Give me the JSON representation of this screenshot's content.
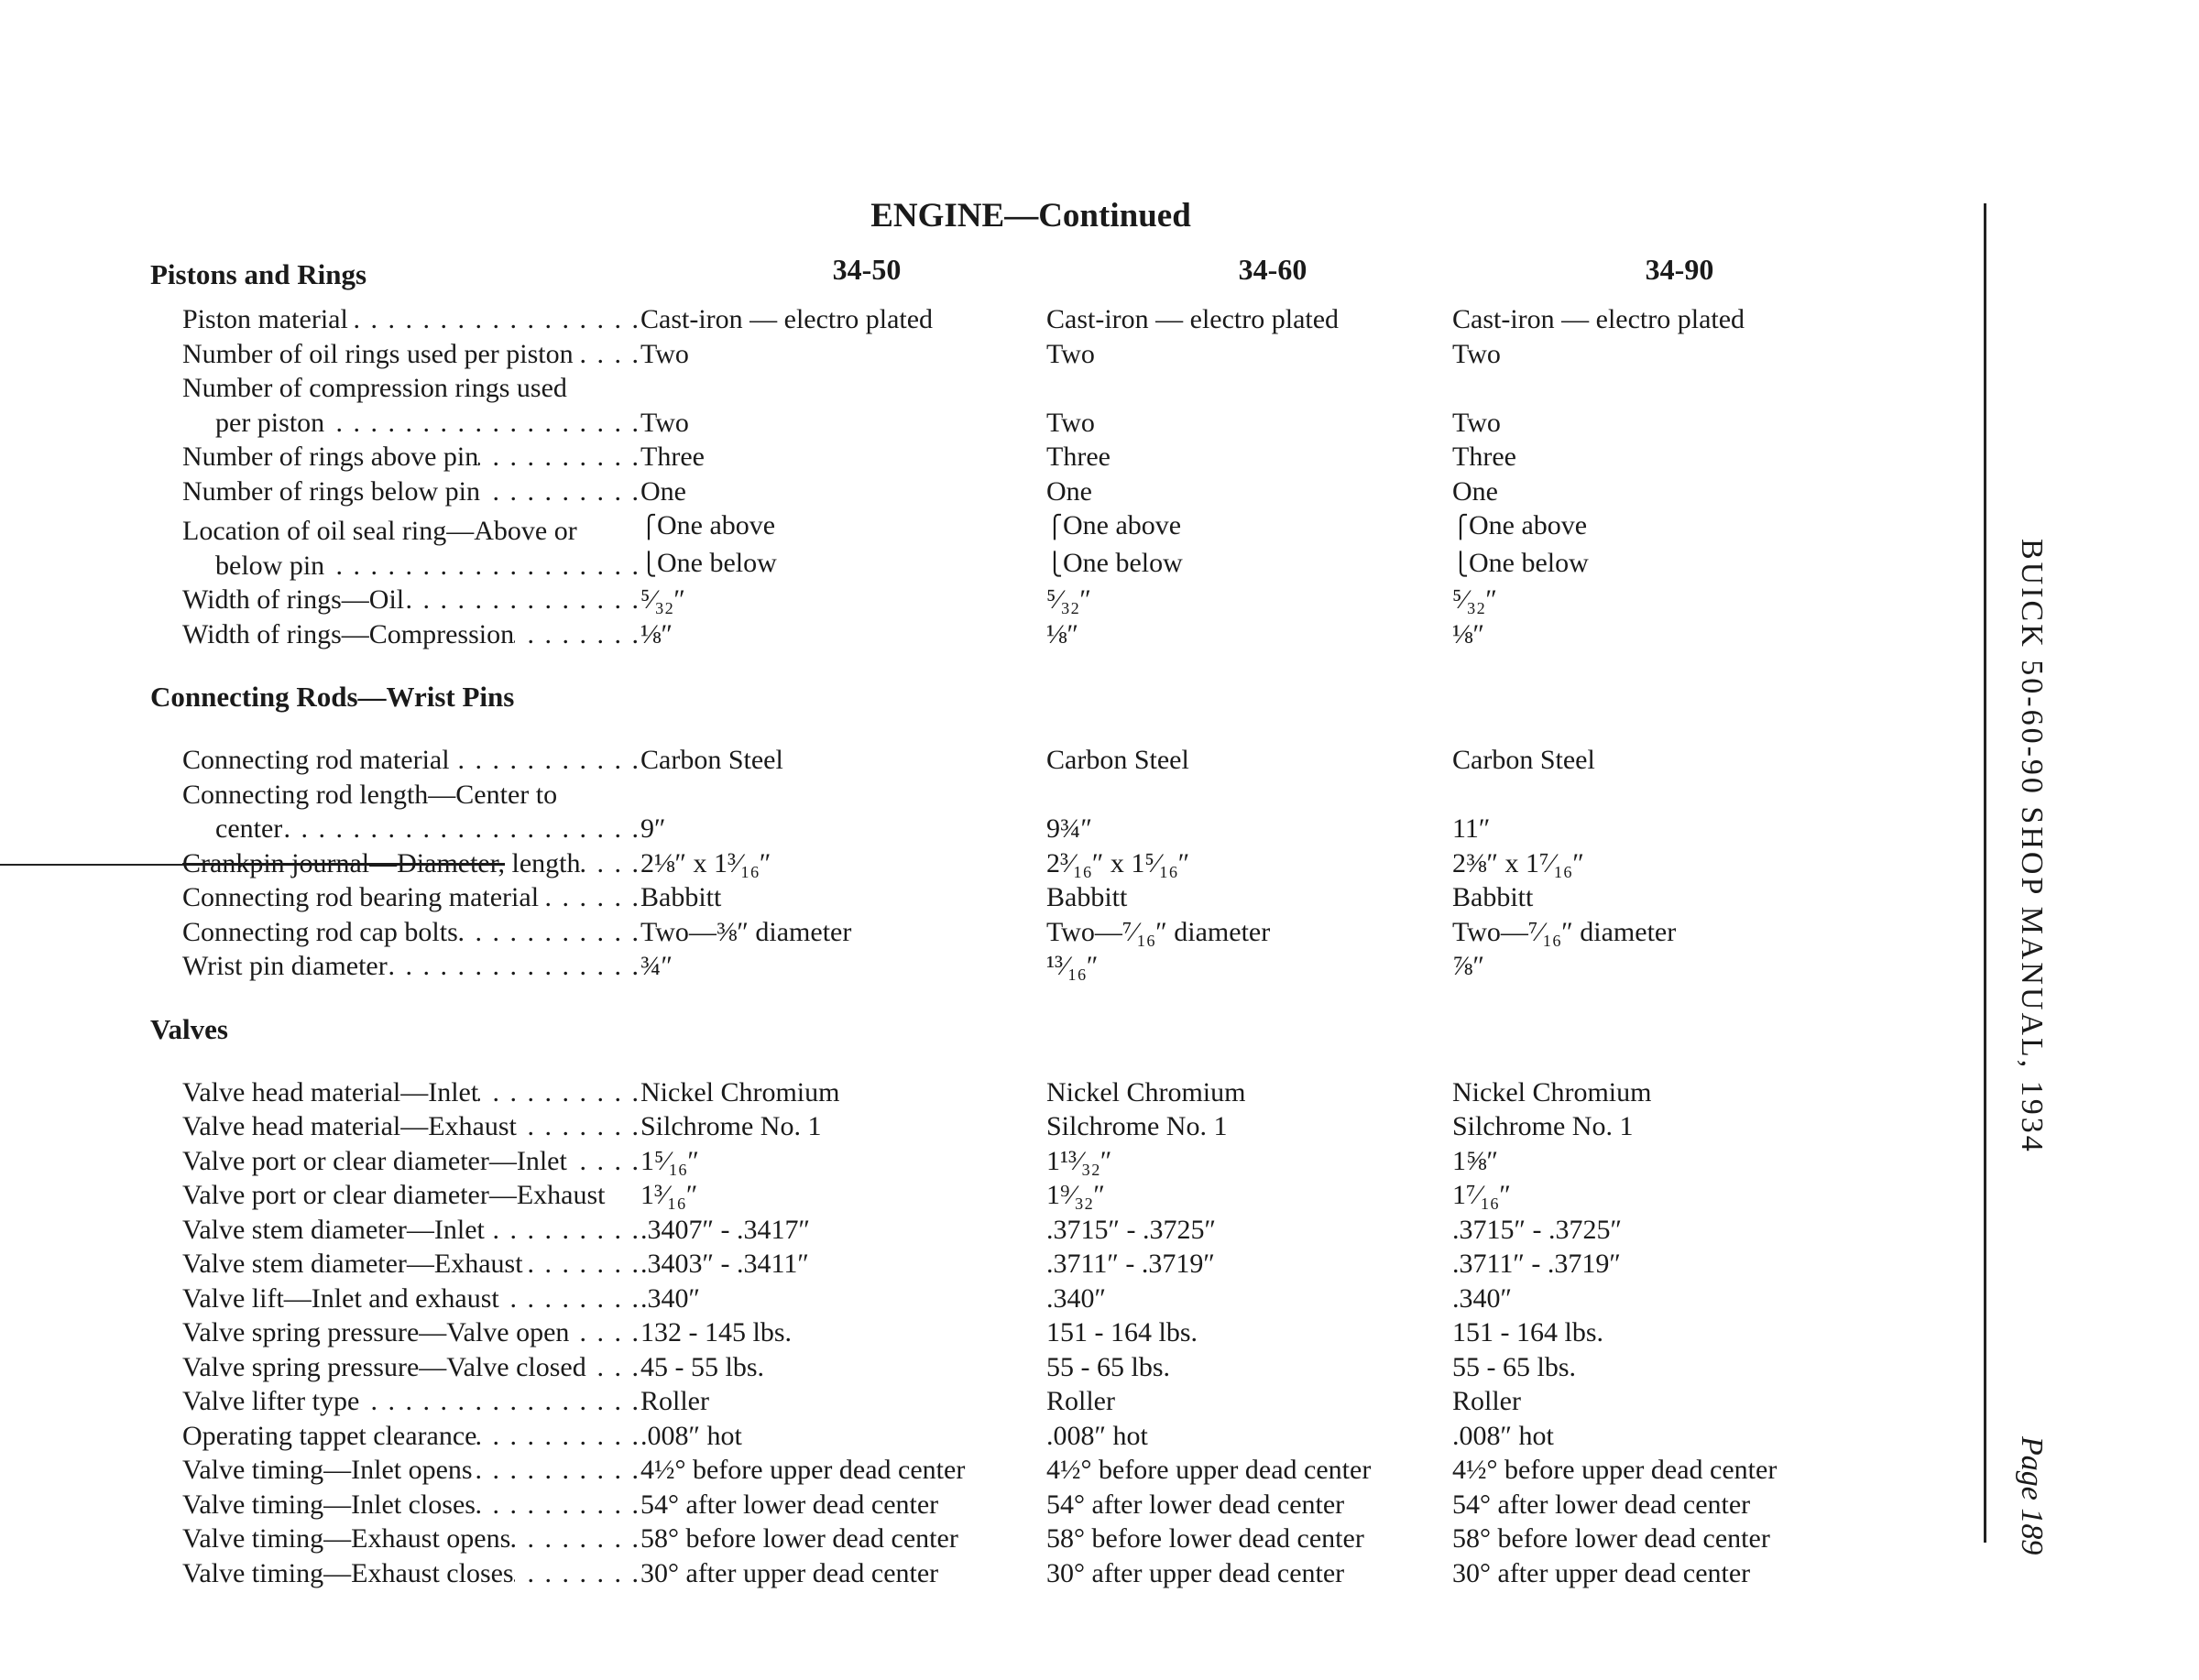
{
  "title": "ENGINE—Continued",
  "columns": [
    "34-50",
    "34-60",
    "34-90"
  ],
  "side_text": "BUICK 50-60-90 SHOP MANUAL, 1934",
  "page_label": "Page 189",
  "sections": [
    {
      "heading": "Pistons and Rings",
      "rows": [
        {
          "label": [
            "Piston material"
          ],
          "values": [
            [
              "Cast-iron — electro plated"
            ],
            [
              "Cast-iron — electro plated"
            ],
            [
              "Cast-iron — electro plated"
            ]
          ]
        },
        {
          "label": [
            "Number of oil rings used per piston"
          ],
          "values": [
            [
              "Two"
            ],
            [
              "Two"
            ],
            [
              "Two"
            ]
          ]
        },
        {
          "label": [
            "Number of compression rings used",
            "per piston"
          ],
          "values": [
            [
              "Two"
            ],
            [
              "Two"
            ],
            [
              "Two"
            ]
          ]
        },
        {
          "label": [
            "Number of rings above pin"
          ],
          "values": [
            [
              "Three"
            ],
            [
              "Three"
            ],
            [
              "Three"
            ]
          ]
        },
        {
          "label": [
            "Number of rings below pin"
          ],
          "values": [
            [
              "One"
            ],
            [
              "One"
            ],
            [
              "One"
            ]
          ]
        },
        {
          "label": [
            "Location of oil seal ring—Above or",
            "below pin"
          ],
          "brace": true,
          "values": [
            [
              "One above",
              "One below"
            ],
            [
              "One above",
              "One below"
            ],
            [
              "One above",
              "One below"
            ]
          ]
        },
        {
          "label": [
            "Width of rings—Oil"
          ],
          "values": [
            [
              "⁵⁄₃₂″"
            ],
            [
              "⁵⁄₃₂″"
            ],
            [
              "⁵⁄₃₂″"
            ]
          ]
        },
        {
          "label": [
            "Width of rings—Compression"
          ],
          "values": [
            [
              "⅛″"
            ],
            [
              "⅛″"
            ],
            [
              "⅛″"
            ]
          ]
        }
      ]
    },
    {
      "heading": "Connecting Rods—Wrist Pins",
      "rows": [
        {
          "label": [
            "Connecting rod material"
          ],
          "values": [
            [
              "Carbon Steel"
            ],
            [
              "Carbon Steel"
            ],
            [
              "Carbon Steel"
            ]
          ]
        },
        {
          "label": [
            "Connecting rod length—Center to",
            "center"
          ],
          "values": [
            [
              "9″"
            ],
            [
              "9¾″"
            ],
            [
              "11″"
            ]
          ]
        },
        {
          "label": [
            "length"
          ],
          "struck": "Crankpin journal—Diameter,",
          "values": [
            [
              "2⅛″ x 1³⁄₁₆″"
            ],
            [
              "2³⁄₁₆″ x 1⁵⁄₁₆″"
            ],
            [
              "2⅜″ x 1⁷⁄₁₆″"
            ]
          ]
        },
        {
          "label": [
            "Connecting rod bearing material"
          ],
          "values": [
            [
              "Babbitt"
            ],
            [
              "Babbitt"
            ],
            [
              "Babbitt"
            ]
          ]
        },
        {
          "label": [
            "Connecting rod cap bolts"
          ],
          "values": [
            [
              "Two—⅜″ diameter"
            ],
            [
              "Two—⁷⁄₁₆″ diameter"
            ],
            [
              "Two—⁷⁄₁₆″ diameter"
            ]
          ]
        },
        {
          "label": [
            "Wrist pin diameter"
          ],
          "values": [
            [
              "¾″"
            ],
            [
              "¹³⁄₁₆″"
            ],
            [
              "⅞″"
            ]
          ]
        }
      ]
    },
    {
      "heading": "Valves",
      "rows": [
        {
          "label": [
            "Valve head material—Inlet"
          ],
          "values": [
            [
              "Nickel Chromium"
            ],
            [
              "Nickel Chromium"
            ],
            [
              "Nickel Chromium"
            ]
          ]
        },
        {
          "label": [
            "Valve head material—Exhaust"
          ],
          "values": [
            [
              "Silchrome No. 1"
            ],
            [
              "Silchrome No. 1"
            ],
            [
              "Silchrome No. 1"
            ]
          ]
        },
        {
          "label": [
            "Valve port or clear diameter—Inlet"
          ],
          "values": [
            [
              "1⁵⁄₁₆″"
            ],
            [
              "1¹³⁄₃₂″"
            ],
            [
              "1⅝″"
            ]
          ]
        },
        {
          "label": [
            "Valve port or clear diameter—Exhaust"
          ],
          "nodots": true,
          "values": [
            [
              "1³⁄₁₆″"
            ],
            [
              "1⁹⁄₃₂″"
            ],
            [
              "1⁷⁄₁₆″"
            ]
          ]
        },
        {
          "label": [
            "Valve stem diameter—Inlet"
          ],
          "values": [
            [
              ".3407″ - .3417″"
            ],
            [
              ".3715″ - .3725″"
            ],
            [
              ".3715″ - .3725″"
            ]
          ]
        },
        {
          "label": [
            "Valve stem diameter—Exhaust"
          ],
          "values": [
            [
              ".3403″ - .3411″"
            ],
            [
              ".3711″ - .3719″"
            ],
            [
              ".3711″ - .3719″"
            ]
          ]
        },
        {
          "label": [
            "Valve lift—Inlet and exhaust"
          ],
          "values": [
            [
              ".340″"
            ],
            [
              ".340″"
            ],
            [
              ".340″"
            ]
          ]
        },
        {
          "label": [
            "Valve spring pressure—Valve open"
          ],
          "values": [
            [
              "132 - 145 lbs."
            ],
            [
              "151 - 164 lbs."
            ],
            [
              "151 - 164 lbs."
            ]
          ]
        },
        {
          "label": [
            "Valve spring pressure—Valve closed"
          ],
          "values": [
            [
              "45 - 55 lbs."
            ],
            [
              "55 - 65 lbs."
            ],
            [
              "55 - 65 lbs."
            ]
          ]
        },
        {
          "label": [
            "Valve lifter type"
          ],
          "values": [
            [
              "Roller"
            ],
            [
              "Roller"
            ],
            [
              "Roller"
            ]
          ]
        },
        {
          "label": [
            "Operating tappet clearance"
          ],
          "values": [
            [
              ".008″ hot"
            ],
            [
              ".008″ hot"
            ],
            [
              ".008″ hot"
            ]
          ]
        },
        {
          "label": [
            "Valve timing—Inlet opens"
          ],
          "values": [
            [
              "4½° before upper dead center"
            ],
            [
              "4½° before upper dead center"
            ],
            [
              "4½° before upper dead center"
            ]
          ]
        },
        {
          "label": [
            "Valve timing—Inlet closes"
          ],
          "values": [
            [
              "54° after lower dead center"
            ],
            [
              "54° after lower dead center"
            ],
            [
              "54° after lower dead center"
            ]
          ]
        },
        {
          "label": [
            "Valve timing—Exhaust opens"
          ],
          "values": [
            [
              "58° before lower dead center"
            ],
            [
              "58° before lower dead center"
            ],
            [
              "58° before lower dead center"
            ]
          ]
        },
        {
          "label": [
            "Valve timing—Exhaust closes"
          ],
          "values": [
            [
              "30° after upper dead center"
            ],
            [
              "30° after upper dead center"
            ],
            [
              "30° after upper dead center"
            ]
          ]
        }
      ]
    }
  ]
}
